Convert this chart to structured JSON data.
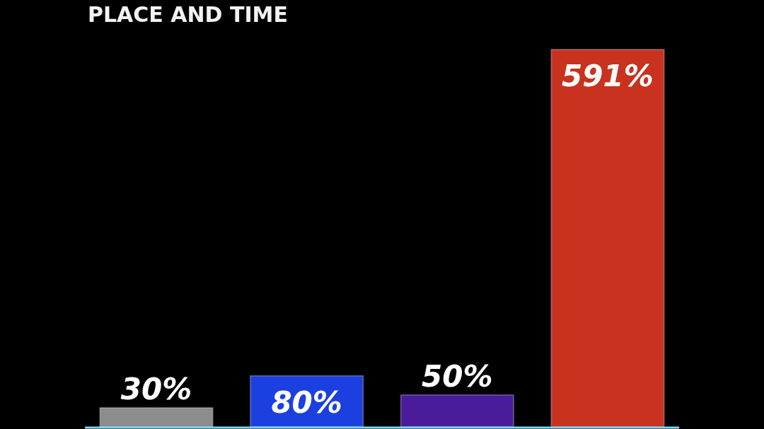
{
  "chart_data": {
    "type": "bar",
    "title": "PLACE AND TIME",
    "categories": [
      null,
      null,
      null,
      null
    ],
    "values": [
      30,
      80,
      50,
      591
    ],
    "colors": [
      "#8c8c8c",
      "#1c40e0",
      "#4a1c9c",
      "#c8321e"
    ],
    "value_labels": [
      "30%",
      "80%",
      "50%",
      "591%"
    ],
    "relative": false
  }
}
